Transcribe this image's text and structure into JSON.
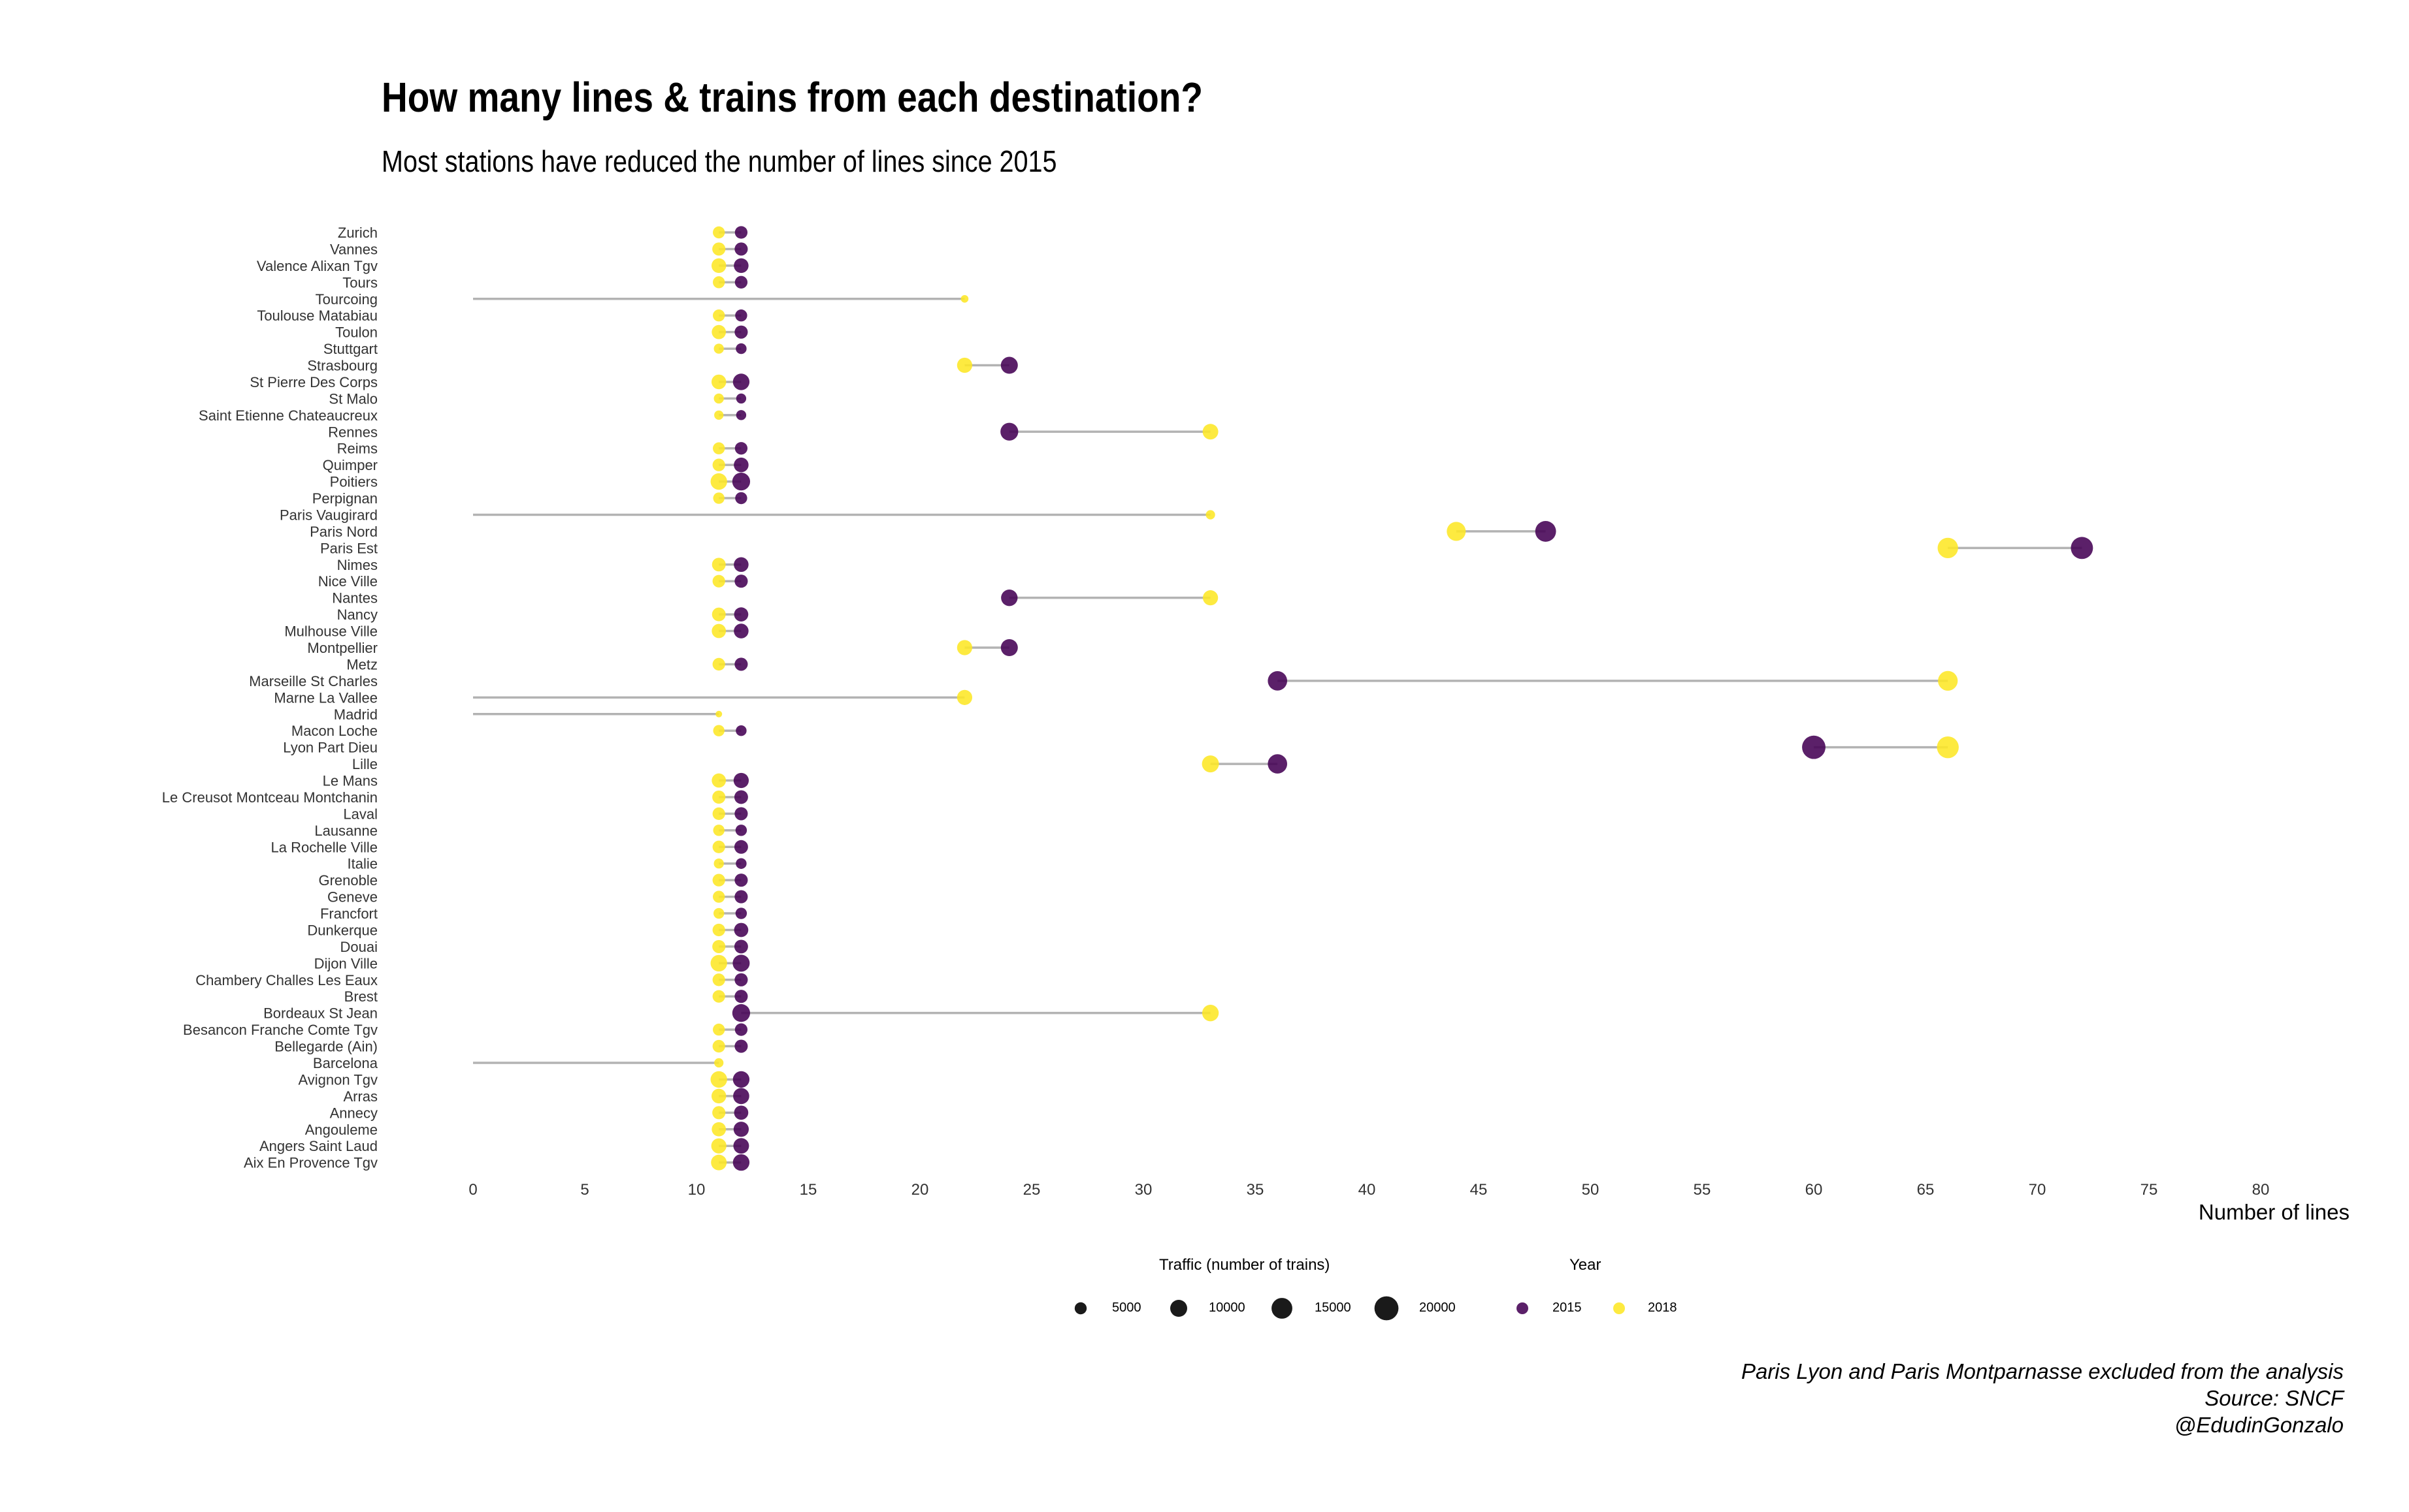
{
  "title": "How many lines & trains from each destination?",
  "subtitle": "Most stations have reduced the number of lines since 2015",
  "caption": [
    "Paris Lyon and Paris Montparnasse excluded from the analysis",
    "Source: SNCF",
    "@EdudinGonzalo"
  ],
  "colors": {
    "y2015": "#440154",
    "y2018": "#FDE725",
    "segment": "#b3b3b3",
    "size_legend": "#1a1a1a"
  },
  "legend": {
    "size_title": "Traffic (number of trains)",
    "size_items": [
      {
        "label": "5000",
        "value": 5000
      },
      {
        "label": "10000",
        "value": 10000
      },
      {
        "label": "15000",
        "value": 15000
      },
      {
        "label": "20000",
        "value": 20000
      }
    ],
    "color_title": "Year",
    "color_items": [
      {
        "label": "2015",
        "color": "#440154"
      },
      {
        "label": "2018",
        "color": "#FDE725"
      }
    ]
  },
  "chart_data": {
    "type": "scatter",
    "title": "How many lines & trains from each destination?",
    "subtitle": "Most stations have reduced the number of lines since 2015",
    "xlabel": "Number of lines",
    "ylabel": "",
    "xlim": [
      0,
      80
    ],
    "xticks": [
      0,
      5,
      10,
      15,
      20,
      25,
      30,
      35,
      40,
      45,
      50,
      55,
      60,
      65,
      70,
      75,
      80
    ],
    "grid": false,
    "legend_position": "bottom",
    "categories": [
      "Zurich",
      "Vannes",
      "Valence Alixan Tgv",
      "Tours",
      "Tourcoing",
      "Toulouse Matabiau",
      "Toulon",
      "Stuttgart",
      "Strasbourg",
      "St Pierre Des Corps",
      "St Malo",
      "Saint Etienne Chateaucreux",
      "Rennes",
      "Reims",
      "Quimper",
      "Poitiers",
      "Perpignan",
      "Paris Vaugirard",
      "Paris Nord",
      "Paris Est",
      "Nimes",
      "Nice Ville",
      "Nantes",
      "Nancy",
      "Mulhouse Ville",
      "Montpellier",
      "Metz",
      "Marseille St Charles",
      "Marne La Vallee",
      "Madrid",
      "Macon Loche",
      "Lyon Part Dieu",
      "Lille",
      "Le Mans",
      "Le Creusot Montceau Montchanin",
      "Laval",
      "Lausanne",
      "La Rochelle Ville",
      "Italie",
      "Grenoble",
      "Geneve",
      "Francfort",
      "Dunkerque",
      "Douai",
      "Dijon Ville",
      "Chambery Challes Les Eaux",
      "Brest",
      "Bordeaux St Jean",
      "Besancon Franche Comte Tgv",
      "Bellegarde (Ain)",
      "Barcelona",
      "Avignon Tgv",
      "Arras",
      "Annecy",
      "Angouleme",
      "Angers Saint Laud",
      "Aix En Provence Tgv"
    ],
    "series": [
      {
        "name": "2015",
        "lines": [
          12,
          12,
          12,
          12,
          0,
          12,
          12,
          12,
          24,
          12,
          12,
          12,
          24,
          12,
          12,
          12,
          12,
          0,
          48,
          72,
          12,
          12,
          24,
          12,
          12,
          24,
          12,
          36,
          0,
          0,
          12,
          60,
          36,
          12,
          12,
          12,
          12,
          12,
          12,
          12,
          12,
          12,
          12,
          12,
          12,
          12,
          12,
          12,
          12,
          12,
          0,
          12,
          12,
          12,
          12,
          12,
          12
        ],
        "traffic": [
          5500,
          6000,
          7500,
          5500,
          null,
          5000,
          6000,
          4000,
          10000,
          9500,
          3500,
          3500,
          11000,
          5500,
          7500,
          11000,
          5000,
          null,
          15000,
          17000,
          7500,
          6000,
          9500,
          7000,
          7500,
          10000,
          6000,
          13000,
          null,
          null,
          4000,
          19000,
          13000,
          8000,
          6500,
          6000,
          4500,
          6500,
          4000,
          6000,
          6000,
          4500,
          7000,
          6500,
          10000,
          6000,
          6000,
          11000,
          5500,
          6000,
          null,
          9500,
          9000,
          7000,
          8000,
          8500,
          9500
        ]
      },
      {
        "name": "2018",
        "lines": [
          11,
          11,
          11,
          11,
          22,
          11,
          11,
          11,
          22,
          11,
          11,
          11,
          33,
          11,
          11,
          11,
          11,
          33,
          44,
          66,
          11,
          11,
          33,
          11,
          11,
          22,
          11,
          66,
          22,
          11,
          11,
          66,
          33,
          11,
          11,
          11,
          11,
          11,
          11,
          11,
          11,
          11,
          11,
          11,
          11,
          11,
          11,
          33,
          11,
          11,
          11,
          11,
          11,
          11,
          11,
          11,
          11
        ],
        "traffic": [
          5000,
          6000,
          7500,
          5000,
          2000,
          5000,
          7000,
          3500,
          8000,
          7500,
          3500,
          3000,
          8500,
          5000,
          5500,
          9500,
          4500,
          3000,
          12500,
          14500,
          6500,
          5500,
          8000,
          6500,
          7000,
          8000,
          5500,
          13500,
          8000,
          1500,
          4500,
          16500,
          10000,
          7000,
          6000,
          5500,
          4500,
          5500,
          3500,
          5500,
          5000,
          4000,
          5500,
          6000,
          9500,
          5500,
          5500,
          9500,
          5000,
          5500,
          3000,
          9500,
          7500,
          6000,
          7000,
          8000,
          8500
        ]
      }
    ]
  }
}
